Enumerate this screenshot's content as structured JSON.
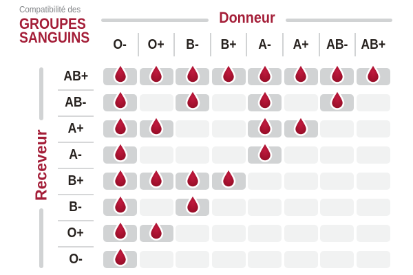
{
  "title": {
    "kicker": "Compatibilité des",
    "line1": "GROUPES",
    "line2": "SANGUINS"
  },
  "axes": {
    "donor": "Donneur",
    "receiver": "Receveur"
  },
  "icons": {
    "compatible_marker": "blood-drop-icon"
  },
  "colors": {
    "accent_red": "#a41e38",
    "drop_red": "#a81230",
    "drop_red_dark": "#8f0c24",
    "cell_filled_gray": "#d1d3d4",
    "cell_empty_gray": "#f1f2f2",
    "label_dark": "#27221f",
    "kicker_gray": "#848689",
    "rule_gray": "#d1d3d4"
  },
  "chart_data": {
    "type": "heatmap",
    "title": "Compatibilité des GROUPES SANGUINS",
    "x_axis_label": "Donneur",
    "y_axis_label": "Receveur",
    "columns": [
      "O-",
      "O+",
      "B-",
      "B+",
      "A-",
      "A+",
      "AB-",
      "AB+"
    ],
    "rows": [
      "AB+",
      "AB-",
      "A+",
      "A-",
      "B+",
      "B-",
      "O+",
      "O-"
    ],
    "cell_meaning": "1 = blood drop shown (donor column compatible with receiver row), 0 = empty gray cell",
    "matrix": [
      [
        1,
        1,
        1,
        1,
        1,
        1,
        1,
        1
      ],
      [
        1,
        0,
        1,
        0,
        1,
        0,
        1,
        0
      ],
      [
        1,
        1,
        0,
        0,
        1,
        1,
        0,
        0
      ],
      [
        1,
        0,
        0,
        0,
        1,
        0,
        0,
        0
      ],
      [
        1,
        1,
        1,
        1,
        0,
        0,
        0,
        0
      ],
      [
        1,
        0,
        1,
        0,
        0,
        0,
        0,
        0
      ],
      [
        1,
        1,
        0,
        0,
        0,
        0,
        0,
        0
      ],
      [
        1,
        0,
        0,
        0,
        0,
        0,
        0,
        0
      ]
    ],
    "legend_position": "none",
    "grid": "off"
  }
}
